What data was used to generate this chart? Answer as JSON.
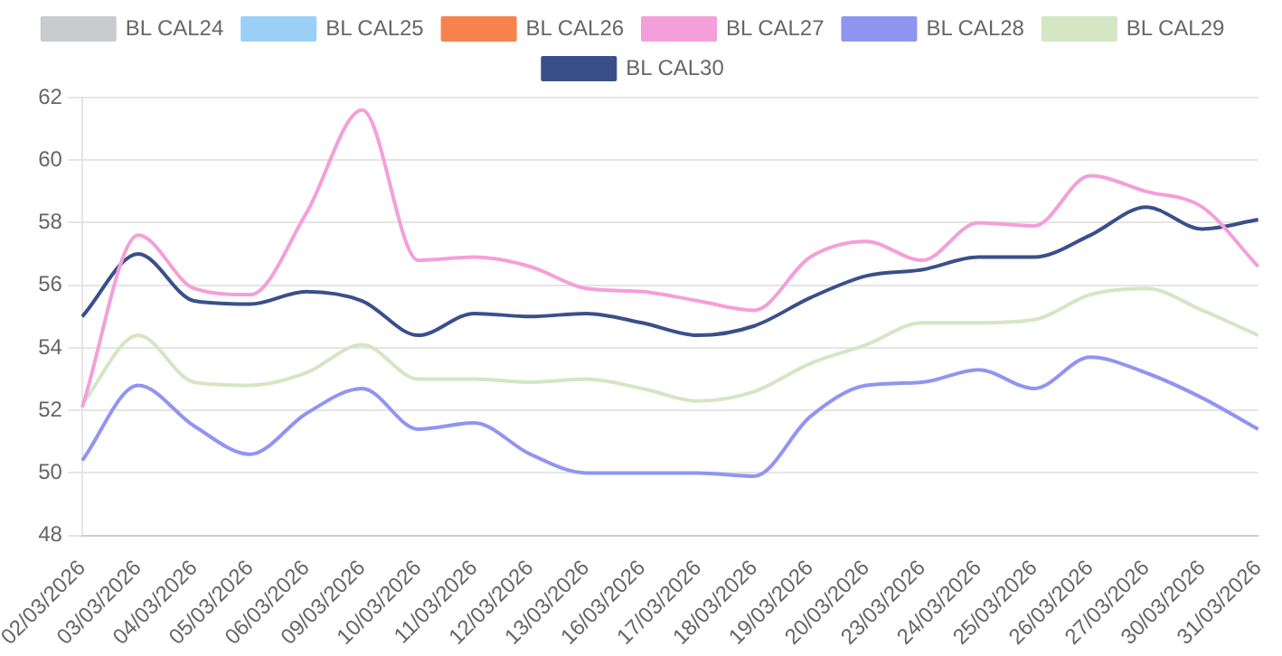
{
  "chart_data": {
    "type": "line",
    "categories": [
      "02/03/2026",
      "03/03/2026",
      "04/03/2026",
      "05/03/2026",
      "06/03/2026",
      "09/03/2026",
      "10/03/2026",
      "11/03/2026",
      "12/03/2026",
      "13/03/2026",
      "16/03/2026",
      "17/03/2026",
      "18/03/2026",
      "19/03/2026",
      "20/03/2026",
      "23/03/2026",
      "24/03/2026",
      "25/03/2026",
      "26/03/2026",
      "27/03/2026",
      "30/03/2026",
      "31/03/2026"
    ],
    "series": [
      {
        "name": "BL CAL24",
        "color": "#c9cbcf",
        "values": [
          null,
          null,
          null,
          null,
          null,
          null,
          null,
          null,
          null,
          null,
          null,
          null,
          null,
          null,
          null,
          null,
          null,
          null,
          null,
          null,
          null,
          null
        ]
      },
      {
        "name": "BL CAL25",
        "color": "#9ad0f5",
        "values": [
          null,
          null,
          null,
          null,
          null,
          null,
          null,
          null,
          null,
          null,
          null,
          null,
          null,
          null,
          null,
          null,
          null,
          null,
          null,
          null,
          null,
          null
        ]
      },
      {
        "name": "BL CAL26",
        "color": "#f7824d",
        "values": [
          null,
          null,
          null,
          null,
          null,
          null,
          null,
          null,
          null,
          null,
          null,
          null,
          null,
          null,
          null,
          null,
          null,
          null,
          null,
          null,
          null,
          null
        ]
      },
      {
        "name": "BL CAL27",
        "color": "#f49fd9",
        "values": [
          52.1,
          57.6,
          55.9,
          55.7,
          58.3,
          61.6,
          56.8,
          56.9,
          56.6,
          55.9,
          55.8,
          55.5,
          55.2,
          56.9,
          57.4,
          56.8,
          58.0,
          57.9,
          59.5,
          59.0,
          58.5,
          56.6
        ]
      },
      {
        "name": "BL CAL28",
        "color": "#9095f2",
        "values": [
          50.4,
          52.8,
          51.5,
          50.6,
          51.9,
          52.7,
          51.4,
          51.6,
          50.6,
          50.0,
          50.0,
          50.0,
          49.9,
          51.8,
          52.8,
          52.9,
          53.3,
          52.7,
          53.7,
          53.2,
          52.4,
          51.4
        ]
      },
      {
        "name": "BL CAL29",
        "color": "#d4e6c4",
        "values": [
          52.2,
          54.4,
          52.9,
          52.8,
          53.2,
          54.1,
          53.0,
          53.0,
          52.9,
          53.0,
          52.7,
          52.3,
          52.6,
          53.5,
          54.1,
          54.8,
          54.8,
          54.9,
          55.7,
          55.9,
          55.2,
          54.4
        ]
      },
      {
        "name": "BL CAL30",
        "color": "#3a4f8a",
        "values": [
          55.0,
          57.0,
          55.5,
          55.4,
          55.8,
          55.5,
          54.4,
          55.1,
          55.0,
          55.1,
          54.8,
          54.4,
          54.7,
          55.6,
          56.3,
          56.5,
          56.9,
          56.9,
          57.6,
          58.5,
          57.8,
          58.1
        ]
      }
    ],
    "ylim": [
      48,
      62
    ],
    "yticks": [
      48,
      50,
      52,
      54,
      56,
      58,
      60,
      62
    ],
    "grid": "y",
    "legend": "top",
    "marker": "none"
  }
}
